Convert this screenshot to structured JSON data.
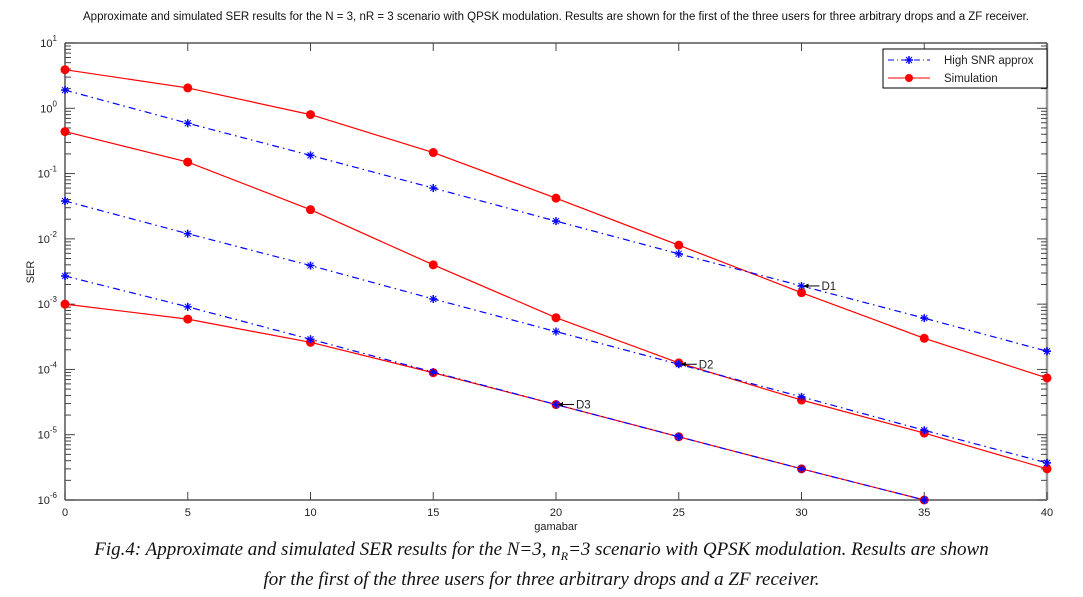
{
  "chart_data": {
    "type": "line",
    "title": "Approximate and simulated SER results for the N = 3, nR = 3 scenario with QPSK modulation. Results are shown for the first of the three users for three arbitrary drops and a ZF receiver.",
    "xlabel": "gamabar",
    "ylabel": "SER",
    "xlim": [
      0,
      40
    ],
    "ylim": [
      1e-06,
      10
    ],
    "yscale": "log",
    "xticks": [
      0,
      5,
      10,
      15,
      20,
      25,
      30,
      35,
      40
    ],
    "xtick_labels": [
      "0",
      "5",
      "10",
      "15",
      "20",
      "25",
      "30",
      "35",
      "40"
    ],
    "yticks_exp": [
      1,
      0,
      -1,
      -2,
      -3,
      -4,
      -5,
      -6
    ],
    "ytick_base": "10",
    "grid": false,
    "legend_position": "top-right",
    "legend": [
      {
        "label": "High SNR approx",
        "color": "#0000ff",
        "style": "dash-dot",
        "marker": "star"
      },
      {
        "label": "Simulation",
        "color": "#ff0000",
        "style": "solid",
        "marker": "circle"
      }
    ],
    "series": [
      {
        "name": "High SNR approx D1",
        "group": "High SNR approx",
        "color": "#0000ff",
        "x": [
          0,
          5,
          10,
          15,
          20,
          25,
          30,
          35,
          40
        ],
        "values": [
          1.9,
          0.59,
          0.19,
          0.06,
          0.0187,
          0.0059,
          0.0019,
          0.00061,
          0.00019
        ]
      },
      {
        "name": "Simulation D1",
        "group": "Simulation",
        "color": "#ff0000",
        "x": [
          0,
          5,
          10,
          15,
          20,
          25,
          30,
          35,
          40
        ],
        "values": [
          3.9,
          2.05,
          0.8,
          0.21,
          0.042,
          0.008,
          0.0015,
          0.0003,
          7.4e-05
        ]
      },
      {
        "name": "High SNR approx D2",
        "group": "High SNR approx",
        "color": "#0000ff",
        "x": [
          0,
          5,
          10,
          15,
          20,
          25,
          30,
          35,
          40
        ],
        "values": [
          0.038,
          0.012,
          0.0039,
          0.0012,
          0.00038,
          0.00012,
          3.8e-05,
          1.17e-05,
          3.7e-06
        ]
      },
      {
        "name": "Simulation D2",
        "group": "Simulation",
        "color": "#ff0000",
        "x": [
          0,
          5,
          10,
          15,
          20,
          25,
          30,
          35,
          40
        ],
        "values": [
          0.44,
          0.15,
          0.028,
          0.004,
          0.00062,
          0.000126,
          3.4e-05,
          1.06e-05,
          3e-06
        ]
      },
      {
        "name": "High SNR approx D3",
        "group": "High SNR approx",
        "color": "#0000ff",
        "x": [
          0,
          5,
          10,
          15,
          20,
          25,
          30,
          35
        ],
        "values": [
          0.0027,
          0.00091,
          0.00029,
          9.1e-05,
          2.9e-05,
          9.3e-06,
          3e-06,
          9.8e-07
        ]
      },
      {
        "name": "Simulation D3",
        "group": "Simulation",
        "color": "#ff0000",
        "x": [
          0,
          5,
          10,
          15,
          20,
          25,
          30,
          35
        ],
        "values": [
          0.001,
          0.00059,
          0.00026,
          8.9e-05,
          2.9e-05,
          9.3e-06,
          3e-06,
          1e-06
        ]
      }
    ],
    "annotations": [
      {
        "text": "D1",
        "x": 30,
        "y": 0.0019
      },
      {
        "text": "D2",
        "x": 25,
        "y": 0.00012
      },
      {
        "text": "D3",
        "x": 20,
        "y": 2.9e-05
      }
    ]
  },
  "caption": {
    "prefix": "Fig.4: Approximate and simulated SER results for the N=3, n",
    "sub": "R",
    "suffix": "=3 scenario with QPSK modulation. Results are shown",
    "line2": "for the first of the three users for three arbitrary drops and a ZF receiver."
  }
}
